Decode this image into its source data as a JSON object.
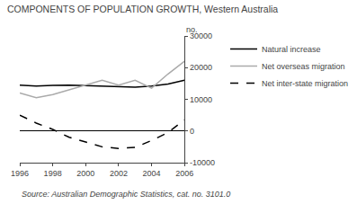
{
  "chart_data": {
    "type": "line",
    "title": "COMPONENTS OF POPULATION GROWTH, Western Australia",
    "ylabel": "no.",
    "source": "Source: Australian Demographic Statistics, cat. no. 3101.0",
    "x": [
      1996,
      1997,
      1998,
      1999,
      2000,
      2001,
      2002,
      2003,
      2004,
      2005,
      2006
    ],
    "series": [
      {
        "name": "Natural increase",
        "color": "#000000",
        "line_style": "solid",
        "values": [
          14500,
          14200,
          14400,
          14500,
          14300,
          14200,
          14000,
          13800,
          14200,
          14800,
          16000
        ]
      },
      {
        "name": "Net overseas migration",
        "color": "#aaaaaa",
        "line_style": "solid",
        "values": [
          12000,
          10500,
          11500,
          13000,
          14500,
          16000,
          14500,
          16000,
          13500,
          18000,
          22000
        ]
      },
      {
        "name": "Net inter-state migration",
        "color": "#000000",
        "line_style": "dashed",
        "values": [
          5000,
          2500,
          500,
          -2000,
          -3500,
          -5000,
          -5500,
          -5200,
          -3000,
          -500,
          3500
        ]
      }
    ],
    "xlim": [
      1996,
      2006
    ],
    "xticks": [
      1996,
      1998,
      2000,
      2002,
      2004,
      2006
    ],
    "ylim": [
      -10000,
      30000
    ],
    "yticks": [
      -10000,
      0,
      10000,
      20000,
      30000
    ],
    "grid": false,
    "legend": "right"
  }
}
